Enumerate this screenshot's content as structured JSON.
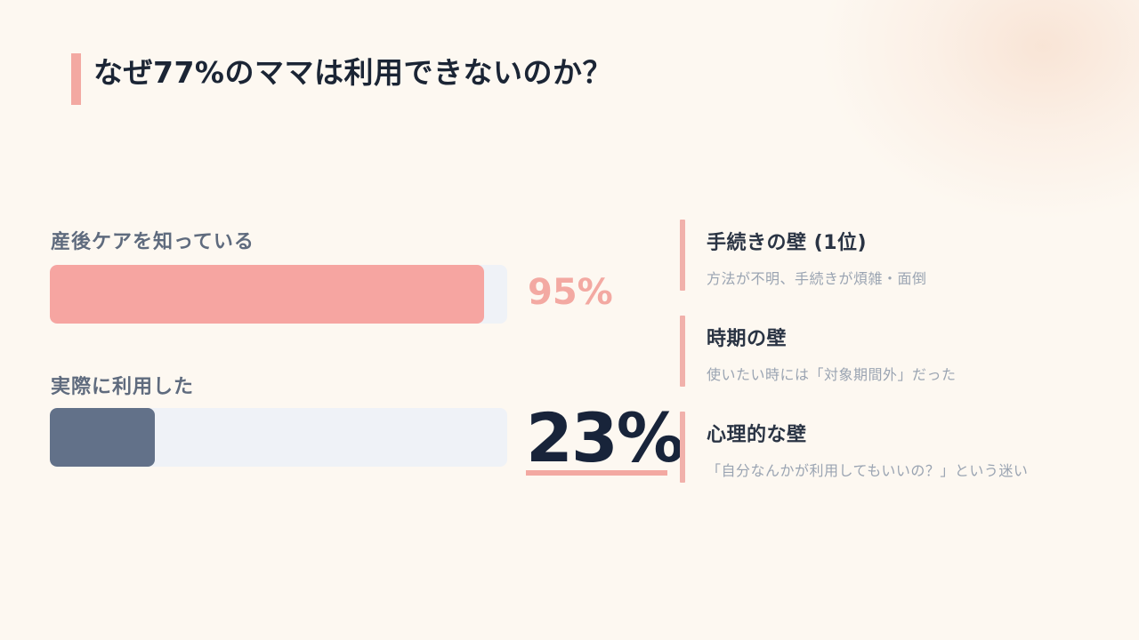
{
  "header": {
    "title": "なぜ77%のママは利用できないのか？"
  },
  "stats": [
    {
      "label": "産後ケアを知っている",
      "value_label": "95%",
      "fill_fraction": 0.95,
      "color": "#f6a5a1"
    },
    {
      "label": "実際に利用した",
      "value_label": "23%",
      "fill_fraction": 0.23,
      "color": "#627189"
    }
  ],
  "walls": [
    {
      "title": "手続きの壁 (1位)",
      "desc": "方法が不明、手続きが煩雑・面倒"
    },
    {
      "title": "時期の壁",
      "desc": "使いたい時には「対象期間外」だった"
    },
    {
      "title": "心理的な壁",
      "desc": "「自分なんかが利用してもいいの？」という迷い"
    }
  ],
  "colors": {
    "background": "#fdf8f1",
    "accent": "#f3a9a2",
    "dark": "#1b2535",
    "track": "#eff2f7"
  }
}
